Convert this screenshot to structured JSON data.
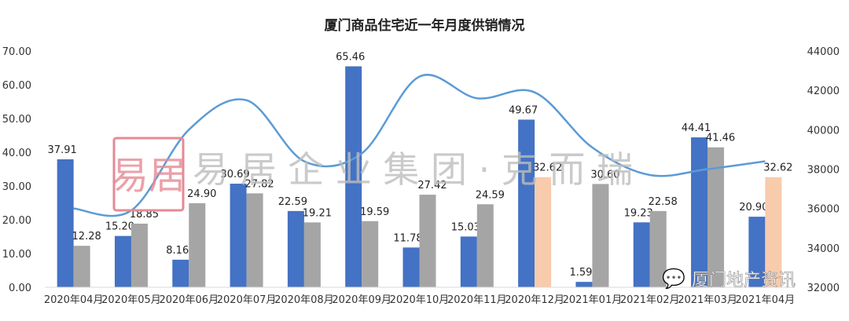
{
  "chart_data": {
    "type": "bar",
    "title": "厦门商品住宅近一年月度供销情况",
    "categories": [
      "2020年04月",
      "2020年05月",
      "2020年06月",
      "2020年07月",
      "2020年08月",
      "2020年09月",
      "2020年10月",
      "2020年11月",
      "2020年12月",
      "2021年01月",
      "2021年02月",
      "2021年03月",
      "2021年04月"
    ],
    "series": [
      {
        "axis": "left",
        "type": "bar",
        "color": "#4472C4",
        "values": [
          37.91,
          15.2,
          8.16,
          30.69,
          22.59,
          65.46,
          11.78,
          15.03,
          49.67,
          1.59,
          19.23,
          44.41,
          20.9
        ]
      },
      {
        "axis": "left",
        "type": "bar",
        "color": "#A5A5A5",
        "highlight_color": "#F8CBAD",
        "highlight_indices": [
          8,
          12
        ],
        "values": [
          12.28,
          18.85,
          24.9,
          27.82,
          19.21,
          19.59,
          27.42,
          24.59,
          32.62,
          30.6,
          22.58,
          41.46,
          32.62
        ]
      },
      {
        "axis": "right",
        "type": "line",
        "color": "#5B9BD5",
        "values": [
          36000,
          35900,
          40000,
          41500,
          38400,
          38800,
          42700,
          41600,
          41900,
          39100,
          37700,
          38000,
          38400
        ]
      }
    ],
    "left_axis": {
      "ylim": [
        0,
        70
      ],
      "ticks": [
        "0.00",
        "10.00",
        "20.00",
        "30.00",
        "40.00",
        "50.00",
        "60.00",
        "70.00"
      ]
    },
    "right_axis": {
      "ylim": [
        32000,
        44000
      ],
      "ticks": [
        "32000",
        "34000",
        "36000",
        "38000",
        "40000",
        "42000",
        "44000"
      ]
    },
    "grid": false,
    "legend": "none"
  },
  "watermarks": {
    "main": "易居企业集团·克而瑞",
    "seal": "易居",
    "corner": "厦门地产资讯"
  }
}
